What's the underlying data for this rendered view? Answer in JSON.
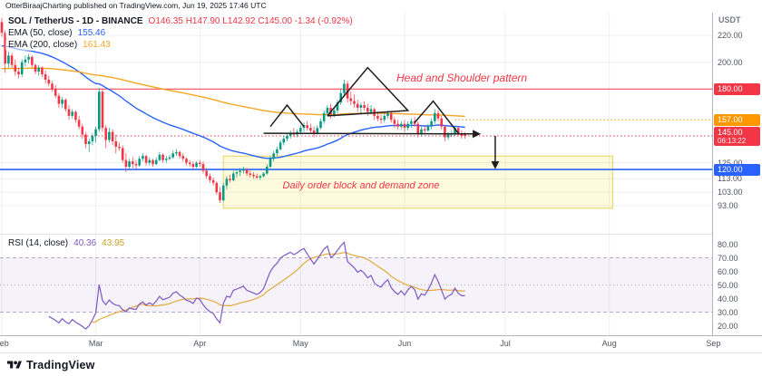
{
  "publish_bar": {
    "text": "OtterBiraajCharting published on TradingView.com, Jun 19, 2025 17:46 UTC"
  },
  "symbol_legend": {
    "title": "SOL / TetherUS - 1D - BINANCE",
    "ohlc": "O146.35  H147.90  L142.92  C145.00  -1.34 (-0.92%)"
  },
  "ema50_legend": {
    "name": "EMA (50, close)",
    "value": "155.46"
  },
  "ema200_legend": {
    "name": "EMA (200, close)",
    "value": "161.43"
  },
  "rsi_legend": {
    "name": "RSI (14, close)",
    "value": "40.36",
    "ma_value": "43.95"
  },
  "annotations": {
    "head_shoulders_label": "Head and Shoulder pattern",
    "order_block_label": "Daily order block and demand zone"
  },
  "axis": {
    "currency": "USDT",
    "price_ticks": [
      {
        "label": "220.00",
        "value": 220
      },
      {
        "label": "200.00",
        "value": 200
      },
      {
        "label": "125.00",
        "value": 125
      },
      {
        "label": "113.00",
        "value": 113
      },
      {
        "label": "103.00",
        "value": 103
      },
      {
        "label": "93.00",
        "value": 93
      }
    ],
    "price_badges": [
      {
        "label": "180.00",
        "value": 180,
        "bg": "#F23645"
      },
      {
        "label": "157.00",
        "value": 157,
        "bg": "#FF9800"
      },
      {
        "label": "145.00",
        "value": 145,
        "bg": "#F23645",
        "sub": "06:13:22"
      },
      {
        "label": "120.00",
        "value": 120,
        "bg": "#2962FF"
      }
    ],
    "rsi_ticks": [
      {
        "label": "80.00",
        "value": 80
      },
      {
        "label": "70.00",
        "value": 70
      },
      {
        "label": "60.00",
        "value": 60
      },
      {
        "label": "50.00",
        "value": 50
      },
      {
        "label": "40.00",
        "value": 40
      },
      {
        "label": "30.00",
        "value": 30
      },
      {
        "label": "20.00",
        "value": 20
      }
    ]
  },
  "time_axis": {
    "months": [
      {
        "label": "Feb",
        "day": 0
      },
      {
        "label": "Mar",
        "day": 28
      },
      {
        "label": "Apr",
        "day": 59
      },
      {
        "label": "May",
        "day": 89
      },
      {
        "label": "Jun",
        "day": 120
      },
      {
        "label": "Jul",
        "day": 150
      },
      {
        "label": "Aug",
        "day": 181
      },
      {
        "label": "Sep",
        "day": 212
      }
    ]
  },
  "footer": {
    "brand": "TradingView"
  },
  "colors": {
    "up": "#089981",
    "down": "#F23645",
    "grid": "rgba(42,46,57,0.08)",
    "red_line": "#F23645",
    "blue_line": "#2962FF",
    "orange": "#FF9800"
  },
  "chart_data": [
    {
      "type": "candlestick",
      "symbol": "SOL/USDT",
      "exchange": "BINANCE",
      "interval": "1D",
      "first_bar_date": "2025-02-01",
      "last_bar_date": "2025-06-19",
      "last_ohlc": {
        "o": 146.35,
        "h": 147.9,
        "l": 142.92,
        "c": 145.0,
        "change": -1.34,
        "change_pct": -0.92
      },
      "ylim": [
        72,
        237
      ],
      "ohlc": [
        [
          230,
          233,
          219,
          222
        ],
        [
          222,
          224,
          192,
          199
        ],
        [
          199,
          208,
          196,
          205
        ],
        [
          205,
          207,
          196,
          198
        ],
        [
          198,
          202,
          190,
          193
        ],
        [
          193,
          196,
          188,
          191
        ],
        [
          191,
          202,
          189,
          200
        ],
        [
          200,
          205,
          197,
          202
        ],
        [
          202,
          206,
          199,
          204
        ],
        [
          204,
          205,
          196,
          198
        ],
        [
          198,
          199,
          191,
          193
        ],
        [
          193,
          198,
          190,
          196
        ],
        [
          196,
          197,
          189,
          191
        ],
        [
          191,
          194,
          184,
          187
        ],
        [
          187,
          190,
          182,
          184
        ],
        [
          184,
          186,
          178,
          180
        ],
        [
          180,
          183,
          173,
          175
        ],
        [
          175,
          177,
          166,
          169
        ],
        [
          169,
          174,
          166,
          172
        ],
        [
          172,
          173,
          163,
          165
        ],
        [
          165,
          168,
          157,
          160
        ],
        [
          160,
          165,
          158,
          163
        ],
        [
          163,
          164,
          155,
          157
        ],
        [
          157,
          160,
          150,
          152
        ],
        [
          152,
          154,
          143,
          146
        ],
        [
          146,
          148,
          136,
          139
        ],
        [
          139,
          143,
          133,
          141
        ],
        [
          141,
          147,
          138,
          145
        ],
        [
          145,
          152,
          140,
          150
        ],
        [
          150,
          181,
          148,
          178
        ],
        [
          178,
          180,
          148,
          151
        ],
        [
          151,
          153,
          136,
          142
        ],
        [
          142,
          151,
          140,
          148
        ],
        [
          148,
          150,
          138,
          141
        ],
        [
          141,
          146,
          132,
          137
        ],
        [
          137,
          140,
          134,
          136
        ],
        [
          136,
          138,
          125,
          127
        ],
        [
          127,
          132,
          118,
          122
        ],
        [
          122,
          128,
          120,
          126
        ],
        [
          126,
          129,
          121,
          124
        ],
        [
          124,
          127,
          120,
          123
        ],
        [
          123,
          130,
          122,
          128
        ],
        [
          128,
          132,
          126,
          130
        ],
        [
          130,
          131,
          123,
          125
        ],
        [
          125,
          129,
          123,
          127
        ],
        [
          127,
          128,
          122,
          124
        ],
        [
          124,
          129,
          123,
          127
        ],
        [
          127,
          133,
          126,
          131
        ],
        [
          131,
          132,
          125,
          127
        ],
        [
          127,
          130,
          125,
          128
        ],
        [
          128,
          131,
          127,
          129
        ],
        [
          129,
          134,
          128,
          132
        ],
        [
          132,
          135,
          130,
          133
        ],
        [
          133,
          134,
          128,
          130
        ],
        [
          130,
          132,
          126,
          128
        ],
        [
          128,
          129,
          123,
          125
        ],
        [
          125,
          127,
          122,
          124
        ],
        [
          124,
          126,
          120,
          122
        ],
        [
          122,
          126,
          121,
          125
        ],
        [
          125,
          127,
          122,
          124
        ],
        [
          124,
          126,
          117,
          119
        ],
        [
          119,
          121,
          113,
          115
        ],
        [
          115,
          117,
          110,
          112
        ],
        [
          112,
          114,
          108,
          110
        ],
        [
          110,
          111,
          101,
          103
        ],
        [
          103,
          107,
          95,
          97
        ],
        [
          97,
          110,
          96,
          108
        ],
        [
          108,
          115,
          105,
          113
        ],
        [
          113,
          116,
          110,
          112
        ],
        [
          112,
          119,
          111,
          117
        ],
        [
          117,
          120,
          114,
          118
        ],
        [
          118,
          121,
          115,
          119
        ],
        [
          119,
          122,
          117,
          120
        ],
        [
          120,
          121,
          115,
          117
        ],
        [
          117,
          119,
          114,
          116
        ],
        [
          116,
          118,
          113,
          115
        ],
        [
          115,
          117,
          113,
          114
        ],
        [
          114,
          116,
          112,
          115
        ],
        [
          115,
          118,
          114,
          117
        ],
        [
          117,
          124,
          116,
          122
        ],
        [
          122,
          130,
          121,
          128
        ],
        [
          128,
          134,
          126,
          132
        ],
        [
          132,
          137,
          130,
          135
        ],
        [
          135,
          142,
          134,
          140
        ],
        [
          140,
          145,
          138,
          143
        ],
        [
          143,
          147,
          141,
          145
        ],
        [
          145,
          149,
          143,
          147
        ],
        [
          147,
          151,
          144,
          146
        ],
        [
          146,
          150,
          144,
          148
        ],
        [
          148,
          153,
          146,
          151
        ],
        [
          151,
          155,
          148,
          153
        ],
        [
          153,
          156,
          149,
          151
        ],
        [
          151,
          154,
          147,
          149
        ],
        [
          149,
          152,
          144,
          147
        ],
        [
          147,
          153,
          146,
          151
        ],
        [
          151,
          158,
          150,
          156
        ],
        [
          156,
          164,
          154,
          162
        ],
        [
          162,
          168,
          160,
          166
        ],
        [
          166,
          169,
          158,
          161
        ],
        [
          161,
          166,
          159,
          164
        ],
        [
          164,
          172,
          162,
          170
        ],
        [
          170,
          180,
          168,
          177
        ],
        [
          177,
          187,
          174,
          184
        ],
        [
          184,
          186,
          170,
          173
        ],
        [
          173,
          178,
          168,
          171
        ],
        [
          171,
          176,
          166,
          169
        ],
        [
          169,
          172,
          163,
          166
        ],
        [
          166,
          170,
          161,
          168
        ],
        [
          168,
          171,
          164,
          166
        ],
        [
          166,
          169,
          160,
          163
        ],
        [
          163,
          168,
          161,
          165
        ],
        [
          165,
          166,
          157,
          160
        ],
        [
          160,
          163,
          156,
          158
        ],
        [
          158,
          161,
          154,
          157
        ],
        [
          157,
          162,
          155,
          160
        ],
        [
          160,
          164,
          158,
          162
        ],
        [
          162,
          163,
          155,
          157
        ],
        [
          157,
          159,
          151,
          154
        ],
        [
          154,
          157,
          150,
          152
        ],
        [
          152,
          156,
          150,
          154
        ],
        [
          154,
          157,
          148,
          151
        ],
        [
          151,
          156,
          149,
          154
        ],
        [
          154,
          158,
          151,
          156
        ],
        [
          156,
          159,
          152,
          154
        ],
        [
          154,
          156,
          144,
          147
        ],
        [
          147,
          152,
          145,
          150
        ],
        [
          150,
          153,
          147,
          149
        ],
        [
          149,
          154,
          148,
          152
        ],
        [
          152,
          158,
          150,
          156
        ],
        [
          156,
          165,
          154,
          162
        ],
        [
          162,
          164,
          156,
          158
        ],
        [
          158,
          160,
          150,
          152
        ],
        [
          152,
          153,
          141,
          144
        ],
        [
          144,
          148,
          142,
          146
        ],
        [
          146,
          149,
          144,
          147
        ],
        [
          147,
          152,
          145,
          151
        ],
        [
          151,
          152,
          145,
          147
        ],
        [
          147,
          149,
          143,
          145
        ],
        [
          146.35,
          147.9,
          142.92,
          145
        ]
      ],
      "emas": [
        {
          "period": 50,
          "color": "#2962FF",
          "seed": 212,
          "last": 155.46
        },
        {
          "period": 200,
          "color": "#F5A623",
          "seed": 195,
          "last": 161.43
        }
      ],
      "hlines": [
        {
          "price": 180,
          "color": "#F23645",
          "style": "solid",
          "width": 1
        },
        {
          "price": 120,
          "color": "#2962FF",
          "style": "solid",
          "width": 1.6
        },
        {
          "price": 145,
          "color": "#F23645",
          "style": "dotted",
          "width": 1
        },
        {
          "price": 157,
          "color": "#FF9800",
          "style": "dotted",
          "width": 1,
          "x_from_day": 135
        }
      ],
      "order_block": {
        "day_start": 66,
        "day_end": 182,
        "price_top": 130,
        "price_bottom": 91,
        "fill": "rgba(247,229,92,0.20)",
        "border": "#E5D352"
      },
      "drawings": {
        "color": "#1E1E1E",
        "left_shoulder": [
          [
            80,
            152
          ],
          [
            85,
            168
          ],
          [
            90,
            152
          ]
        ],
        "head": [
          [
            97,
            160
          ],
          [
            109,
            196
          ],
          [
            121,
            164
          ],
          [
            97,
            160
          ]
        ],
        "right_shoulder": [
          [
            123,
            155
          ],
          [
            128.5,
            171
          ],
          [
            136,
            147
          ]
        ],
        "neckline": [
          [
            78,
            147
          ],
          [
            142,
            146.5
          ]
        ],
        "breakdown_arrow": [
          [
            147,
            145
          ],
          [
            147,
            122
          ]
        ]
      }
    },
    {
      "type": "line",
      "name": "RSI",
      "period": 14,
      "ma_period": 14,
      "source": "price_close",
      "last": 40.36,
      "ma_last": 43.95,
      "band": [
        30,
        70
      ],
      "ylim": [
        13,
        87
      ],
      "colors": {
        "rsi": "#7E57C2",
        "ma": "#E3A93C",
        "band": "rgba(126,87,194,0.08)",
        "levels": "#9B93C7"
      }
    }
  ]
}
